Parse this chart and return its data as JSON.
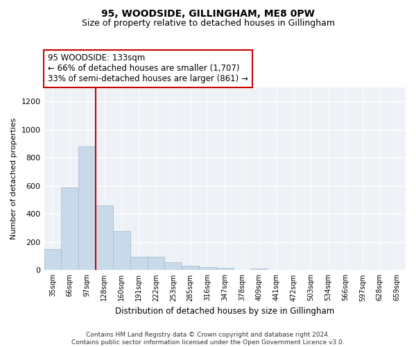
{
  "title": "95, WOODSIDE, GILLINGHAM, ME8 0PW",
  "subtitle": "Size of property relative to detached houses in Gillingham",
  "xlabel": "Distribution of detached houses by size in Gillingham",
  "ylabel": "Number of detached properties",
  "bar_color": "#c8daea",
  "bar_edgecolor": "#a0b8cc",
  "background_color": "#eef2f7",
  "grid_color": "#ffffff",
  "categories": [
    "35sqm",
    "66sqm",
    "97sqm",
    "128sqm",
    "160sqm",
    "191sqm",
    "222sqm",
    "253sqm",
    "285sqm",
    "316sqm",
    "347sqm",
    "378sqm",
    "409sqm",
    "441sqm",
    "472sqm",
    "503sqm",
    "534sqm",
    "566sqm",
    "597sqm",
    "628sqm",
    "659sqm"
  ],
  "values": [
    150,
    590,
    880,
    460,
    280,
    97,
    97,
    57,
    30,
    20,
    15,
    0,
    10,
    0,
    0,
    0,
    0,
    0,
    0,
    0,
    0
  ],
  "ylim": [
    0,
    1300
  ],
  "yticks": [
    0,
    200,
    400,
    600,
    800,
    1000,
    1200
  ],
  "vline_color": "#cc0000",
  "annotation_text": "95 WOODSIDE: 133sqm\n← 66% of detached houses are smaller (1,707)\n33% of semi-detached houses are larger (861) →",
  "annotation_fontsize": 8.5,
  "title_fontsize": 10,
  "subtitle_fontsize": 9,
  "footer_line1": "Contains HM Land Registry data © Crown copyright and database right 2024.",
  "footer_line2": "Contains public sector information licensed under the Open Government Licence v3.0."
}
